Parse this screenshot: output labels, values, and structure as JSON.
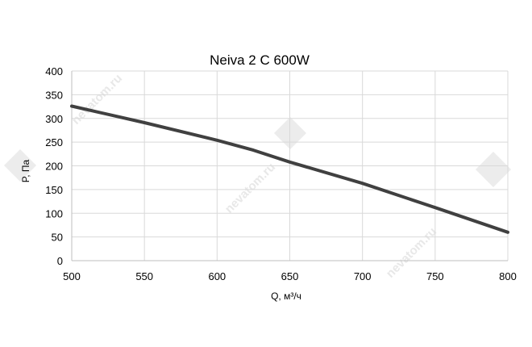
{
  "chart_data": {
    "type": "line",
    "title": "Neiva 2 C 600W",
    "xlabel": "Q, м³/ч",
    "ylabel": "P, Па",
    "xlim": [
      500,
      800
    ],
    "ylim": [
      0,
      400
    ],
    "x_ticks": [
      500,
      550,
      600,
      650,
      700,
      750,
      800
    ],
    "y_ticks": [
      0,
      50,
      100,
      150,
      200,
      250,
      300,
      350,
      400
    ],
    "grid": true,
    "legend": "none",
    "series": [
      {
        "color": "#404040",
        "x": [
          500,
          550,
          600,
          625,
          650,
          700,
          750,
          800
        ],
        "y": [
          326,
          291,
          254,
          233,
          208,
          163,
          112,
          60
        ]
      }
    ]
  },
  "watermark": {
    "text": "nevatom.ru"
  }
}
